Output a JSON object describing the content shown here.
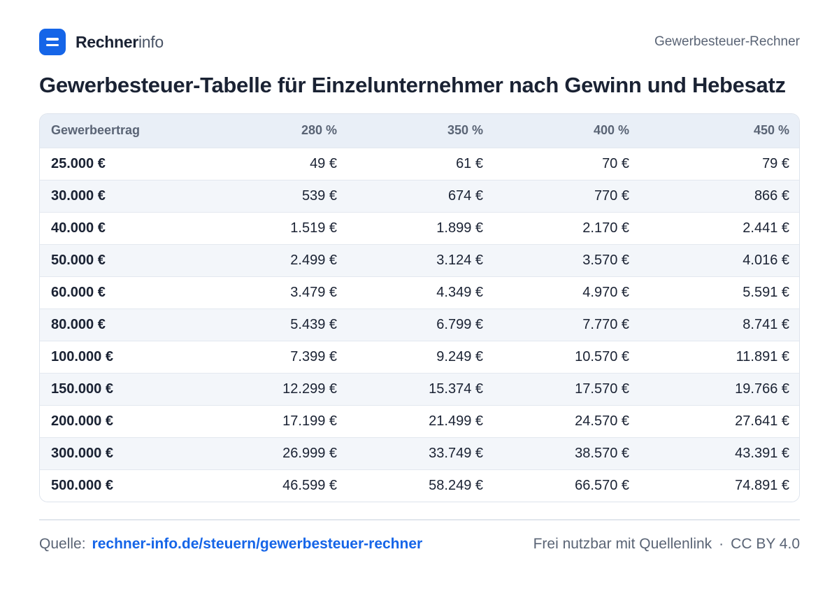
{
  "header": {
    "brand_bold": "Rechner",
    "brand_light": "info",
    "right_label": "Gewerbesteuer-Rechner"
  },
  "title": "Gewerbesteuer-Tabelle  für Einzelunternehmer nach Gewinn und Hebesatz",
  "table": {
    "columns": [
      "Gewerbeertrag",
      "280 %",
      "350 %",
      "400 %",
      "450 %"
    ],
    "rows": [
      [
        "25.000 €",
        "49 €",
        "61 €",
        "70 €",
        "79 €"
      ],
      [
        "30.000 €",
        "539 €",
        "674 €",
        "770 €",
        "866 €"
      ],
      [
        "40.000 €",
        "1.519 €",
        "1.899 €",
        "2.170 €",
        "2.441 €"
      ],
      [
        "50.000 €",
        "2.499 €",
        "3.124 €",
        "3.570 €",
        "4.016 €"
      ],
      [
        "60.000 €",
        "3.479 €",
        "4.349 €",
        "4.970 €",
        "5.591 €"
      ],
      [
        "80.000 €",
        "5.439 €",
        "6.799 €",
        "7.770 €",
        "8.741 €"
      ],
      [
        "100.000 €",
        "7.399 €",
        "9.249 €",
        "10.570 €",
        "11.891 €"
      ],
      [
        "150.000 €",
        "12.299 €",
        "15.374 €",
        "17.570 €",
        "19.766 €"
      ],
      [
        "200.000 €",
        "17.199 €",
        "21.499 €",
        "24.570 €",
        "27.641 €"
      ],
      [
        "300.000 €",
        "26.999 €",
        "33.749 €",
        "38.570 €",
        "43.391 €"
      ],
      [
        "500.000 €",
        "46.599 €",
        "58.249 €",
        "66.570 €",
        "74.891 €"
      ]
    ]
  },
  "footer": {
    "source_label": "Quelle:",
    "source_link": "rechner-info.de/steuern/gewerbesteuer-rechner",
    "license_left": "Frei nutzbar mit Quellenlink",
    "license_sep": "·",
    "license_right": "CC BY 4.0"
  },
  "colors": {
    "accent": "#1565e8",
    "header_row": "#e9eff7",
    "stripe": "#f3f6fa",
    "text": "#1a2233",
    "muted": "#5a6475"
  }
}
